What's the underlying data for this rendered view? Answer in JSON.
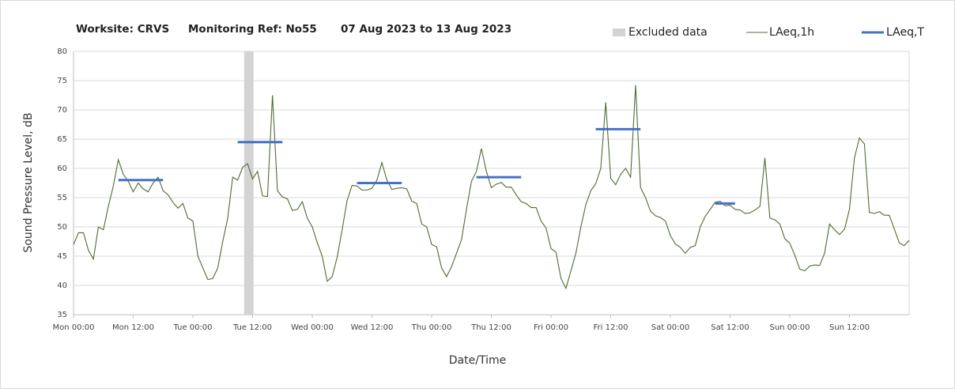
{
  "chart_data": {
    "type": "line",
    "title": [
      "Worksite: CRVS",
      "Monitoring Ref: No55",
      "07 Aug 2023 to 13 Aug 2023"
    ],
    "xlabel": "Date/Time",
    "ylabel": "Sound Pressure Level, dB",
    "xlim": [
      0,
      168
    ],
    "ylim": [
      35,
      80
    ],
    "yticks": [
      35,
      40,
      45,
      50,
      55,
      60,
      65,
      70,
      75,
      80
    ],
    "xticks": [
      {
        "value": 0,
        "label": "Mon 00:00"
      },
      {
        "value": 12,
        "label": "Mon 12:00"
      },
      {
        "value": 24,
        "label": "Tue 00:00"
      },
      {
        "value": 36,
        "label": "Tue 12:00"
      },
      {
        "value": 48,
        "label": "Wed 00:00"
      },
      {
        "value": 60,
        "label": "Wed 12:00"
      },
      {
        "value": 72,
        "label": "Thu 00:00"
      },
      {
        "value": 84,
        "label": "Thu 12:00"
      },
      {
        "value": 96,
        "label": "Fri 00:00"
      },
      {
        "value": 108,
        "label": "Fri 12:00"
      },
      {
        "value": 120,
        "label": "Sat 00:00"
      },
      {
        "value": 132,
        "label": "Sat 12:00"
      },
      {
        "value": 144,
        "label": "Sun 00:00"
      },
      {
        "value": 156,
        "label": "Sun 12:00"
      }
    ],
    "grid": true,
    "legend": "top-right",
    "x": [
      0,
      1,
      2,
      3,
      4,
      5,
      6,
      7,
      8,
      9,
      10,
      11,
      12,
      13,
      14,
      15,
      16,
      17,
      18,
      19,
      20,
      21,
      22,
      23,
      24,
      25,
      26,
      27,
      28,
      29,
      30,
      31,
      32,
      33,
      34,
      35,
      36,
      37,
      38,
      39,
      40,
      41,
      42,
      43,
      44,
      45,
      46,
      47,
      48,
      49,
      50,
      51,
      52,
      53,
      54,
      55,
      56,
      57,
      58,
      59,
      60,
      61,
      62,
      63,
      64,
      65,
      66,
      67,
      68,
      69,
      70,
      71,
      72,
      73,
      74,
      75,
      76,
      77,
      78,
      79,
      80,
      81,
      82,
      83,
      84,
      85,
      86,
      87,
      88,
      89,
      90,
      91,
      92,
      93,
      94,
      95,
      96,
      97,
      98,
      99,
      100,
      101,
      102,
      103,
      104,
      105,
      106,
      107,
      108,
      109,
      110,
      111,
      112,
      113,
      114,
      115,
      116,
      117,
      118,
      119,
      120,
      121,
      122,
      123,
      124,
      125,
      126,
      127,
      128,
      129,
      130,
      131,
      132,
      133,
      134,
      135,
      136,
      137,
      138,
      139,
      140,
      141,
      142,
      143,
      144,
      145,
      146,
      147,
      148,
      149,
      150,
      151,
      152,
      153,
      154,
      155,
      156,
      157,
      158,
      159,
      160,
      161,
      162,
      163,
      164,
      165,
      166,
      167,
      168
    ],
    "series": [
      {
        "name": "LAeq,1h",
        "color": "#4f6b32",
        "values": [
          47,
          49,
          49,
          46,
          44.5,
          50,
          49.5,
          53.5,
          57,
          61.5,
          59,
          57.8,
          56,
          57.5,
          56.5,
          56,
          57.5,
          58.5,
          56.2,
          55.5,
          54.2,
          53.2,
          54,
          51.5,
          51,
          45,
          43,
          41,
          41.2,
          43,
          47.5,
          51.5,
          58.5,
          58,
          60.2,
          60.8,
          58.2,
          59.5,
          55.3,
          55.2,
          72.5,
          56.2,
          55.1,
          54.8,
          52.8,
          53,
          54.3,
          51.5,
          50,
          47.3,
          45,
          40.7,
          41.5,
          44.8,
          49.5,
          54.5,
          57.1,
          57,
          56.3,
          56.3,
          56.6,
          58,
          61,
          58,
          56.4,
          56.6,
          56.7,
          56.5,
          54.4,
          54,
          50.5,
          50,
          47,
          46.6,
          43,
          41.5,
          43.2,
          45.5,
          47.8,
          53,
          57.8,
          59.5,
          63.4,
          59.5,
          56.7,
          57.3,
          57.6,
          56.8,
          56.8,
          55.5,
          54.3,
          54,
          53.3,
          53.3,
          51,
          49.8,
          46.3,
          45.7,
          41.2,
          39.5,
          42.5,
          45.5,
          50,
          53.8,
          56.2,
          57.4,
          60,
          71.3,
          58.3,
          57.2,
          59,
          60,
          58.5,
          74.2,
          56.7,
          55,
          52.7,
          51.9,
          51.6,
          51,
          48.5,
          47.1,
          46.5,
          45.5,
          46.5,
          46.8,
          50,
          51.8,
          53,
          54.2,
          54.4,
          53.6,
          53.7,
          53,
          52.9,
          52.3,
          52.4,
          52.9,
          53.5,
          61.8,
          51.5,
          51.2,
          50.5,
          48,
          47.2,
          45.2,
          42.8,
          42.5,
          43.3,
          43.5,
          43.4,
          45.5,
          50.5,
          49.5,
          48.7,
          49.6,
          53,
          61.8,
          65.2,
          64.2,
          52.5,
          52.3,
          52.6,
          52,
          52,
          49.7,
          47.3,
          46.8,
          47.7
        ]
      }
    ],
    "segments": {
      "name": "LAeq,T",
      "color": "#4472c4",
      "items": [
        {
          "x": [
            9,
            18
          ],
          "value": 58
        },
        {
          "x": [
            33,
            42
          ],
          "value": 64.5
        },
        {
          "x": [
            57,
            66
          ],
          "value": 57.5
        },
        {
          "x": [
            81,
            90
          ],
          "value": 58.5
        },
        {
          "x": [
            105,
            114
          ],
          "value": 66.7
        },
        {
          "x": [
            129,
            133
          ],
          "value": 54
        }
      ]
    },
    "excluded": {
      "name": "Excluded data",
      "color": "#d3d3d3",
      "ranges": [
        [
          34.3,
          36.2
        ]
      ]
    }
  }
}
